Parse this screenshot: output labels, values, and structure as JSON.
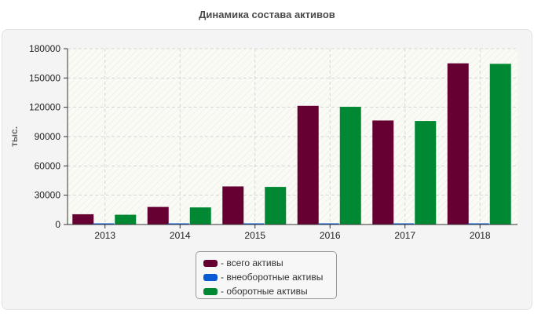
{
  "title": "Динамика состава активов",
  "chart_data": {
    "type": "bar",
    "categories": [
      "2013",
      "2014",
      "2015",
      "2016",
      "2017",
      "2018"
    ],
    "series": [
      {
        "name": "всего активы",
        "color": "#660033",
        "values": [
          10500,
          18000,
          39000,
          121500,
          106500,
          165000
        ]
      },
      {
        "name": "внеоборотные активы",
        "color": "#0a5ad6",
        "values": [
          600,
          600,
          600,
          600,
          600,
          600
        ]
      },
      {
        "name": "оборотные активы",
        "color": "#008833",
        "values": [
          10000,
          17500,
          38500,
          120500,
          106000,
          164500
        ]
      }
    ],
    "ylabel": "тыс.",
    "xlabel": "",
    "ylim": [
      0,
      180000
    ],
    "yticks": [
      "0",
      "30000",
      "60000",
      "90000",
      "120000",
      "150000",
      "180000"
    ],
    "grid": true,
    "legend_position": "bottom-center"
  },
  "legend": {
    "items": [
      "- всего активы",
      "- внеоборотные активы",
      "- оборотные активы"
    ]
  }
}
